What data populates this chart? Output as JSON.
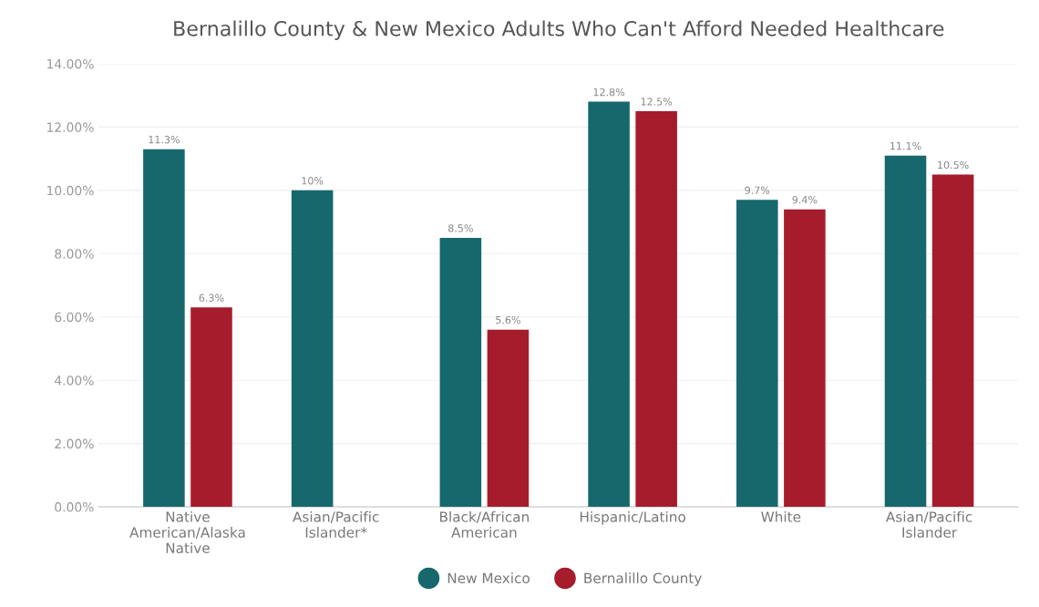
{
  "chart_data": {
    "type": "bar",
    "title": "Bernalillo County & New Mexico Adults Who Can't Afford Needed Healthcare",
    "categories": [
      "Native\nAmerican/Alaska\nNative",
      "Asian/Pacific\nIslander*",
      "Black/African\nAmerican",
      "Hispanic/Latino",
      "White",
      "Asian/Pacific\nIslander"
    ],
    "series": [
      {
        "name": "New Mexico",
        "color": "#17686d",
        "values": [
          11.3,
          10,
          8.5,
          12.8,
          9.7,
          11.1
        ],
        "value_labels": [
          "11.3%",
          "10%",
          "8.5%",
          "12.8%",
          "9.7%",
          "11.1%"
        ]
      },
      {
        "name": "Bernalillo County",
        "color": "#a51c2d",
        "values": [
          6.3,
          null,
          5.6,
          12.5,
          9.4,
          10.5
        ],
        "value_labels": [
          "6.3%",
          null,
          "5.6%",
          "12.5%",
          "9.4%",
          "10.5%"
        ]
      }
    ],
    "ylim": [
      0,
      14
    ],
    "yticks": [
      {
        "value": 0,
        "label": "0.00%"
      },
      {
        "value": 2,
        "label": "2.00%"
      },
      {
        "value": 4,
        "label": "4.00%"
      },
      {
        "value": 6,
        "label": "6.00%"
      },
      {
        "value": 8,
        "label": "8.00%"
      },
      {
        "value": 10,
        "label": "10.00%"
      },
      {
        "value": 12,
        "label": "12.00%"
      },
      {
        "value": 14,
        "label": "14.00%"
      }
    ],
    "grid": "y",
    "legend": "bottom"
  }
}
